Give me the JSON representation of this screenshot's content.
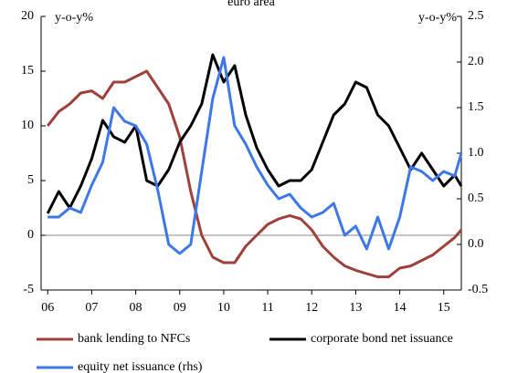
{
  "chart_data": {
    "type": "line",
    "title": "euro area",
    "y_label": "y-o-y%",
    "y2_label": "y-o-y%",
    "x": [
      2006,
      2006.25,
      2006.5,
      2006.75,
      2007,
      2007.25,
      2007.5,
      2007.75,
      2008,
      2008.25,
      2008.5,
      2008.75,
      2009,
      2009.25,
      2009.5,
      2009.75,
      2010,
      2010.25,
      2010.5,
      2010.75,
      2011,
      2011.25,
      2011.5,
      2011.75,
      2012,
      2012.25,
      2012.5,
      2012.75,
      2013,
      2013.25,
      2013.5,
      2013.75,
      2014,
      2014.25,
      2014.5,
      2014.75,
      2015,
      2015.25,
      2015.4
    ],
    "xlim": [
      2005.85,
      2015.4
    ],
    "xticks": [
      {
        "value": 2006,
        "label": "06"
      },
      {
        "value": 2007,
        "label": "07"
      },
      {
        "value": 2008,
        "label": "08"
      },
      {
        "value": 2009,
        "label": "09"
      },
      {
        "value": 2010,
        "label": "10"
      },
      {
        "value": 2011,
        "label": "11"
      },
      {
        "value": 2012,
        "label": "12"
      },
      {
        "value": 2013,
        "label": "13"
      },
      {
        "value": 2014,
        "label": "14"
      },
      {
        "value": 2015,
        "label": "15"
      }
    ],
    "ylim": [
      -5,
      20
    ],
    "yticks": [
      -5,
      0,
      5,
      10,
      15,
      20
    ],
    "y2lim": [
      -0.5,
      2.5
    ],
    "y2ticks": [
      -0.5,
      {
        "value": 0,
        "label": "0.0"
      },
      0.5,
      {
        "value": 1,
        "label": "1.0"
      },
      1.5,
      {
        "value": 2,
        "label": "2.0"
      },
      2.5
    ],
    "zero_line": true,
    "series": [
      {
        "name": "bank lending to NFCs",
        "color": "#a0403a",
        "values": [
          10,
          11.3,
          12,
          13,
          13.2,
          12.5,
          14,
          14,
          14.5,
          15,
          13.5,
          12,
          9,
          4,
          0,
          -2,
          -2.5,
          -2.5,
          -1,
          0,
          1,
          1.5,
          1.8,
          1.5,
          0.5,
          -1,
          -2,
          -2.8,
          -3.2,
          -3.5,
          -3.8,
          -3.8,
          -3,
          -2.8,
          -2.3,
          -1.8,
          -1,
          -0.2,
          0.5
        ]
      },
      {
        "name": "corporate bond net issuance",
        "color": "#000000",
        "values": [
          2,
          4,
          2.5,
          4.5,
          7,
          10.5,
          9,
          8.5,
          10,
          5,
          4.5,
          6,
          8.5,
          10,
          12,
          16.5,
          14,
          15.5,
          11,
          8,
          6,
          4.5,
          5,
          5,
          6,
          8.5,
          11,
          12,
          14,
          13.5,
          11,
          10,
          8,
          6,
          7.5,
          6,
          4.5,
          5.5,
          4.5
        ]
      },
      {
        "name": "equity net issuance (rhs)",
        "color": "#3d78e6",
        "axis": "y2",
        "values": [
          0.3,
          0.3,
          0.4,
          0.35,
          0.65,
          0.9,
          1.5,
          1.35,
          1.3,
          1.1,
          0.6,
          0,
          -0.1,
          0,
          0.8,
          1.6,
          2.05,
          1.3,
          1.1,
          0.85,
          0.65,
          0.5,
          0.55,
          0.4,
          0.3,
          0.35,
          0.45,
          0.1,
          0.2,
          -0.05,
          0.3,
          -0.05,
          0.3,
          0.85,
          0.8,
          0.7,
          0.8,
          0.75,
          1
        ]
      }
    ]
  }
}
